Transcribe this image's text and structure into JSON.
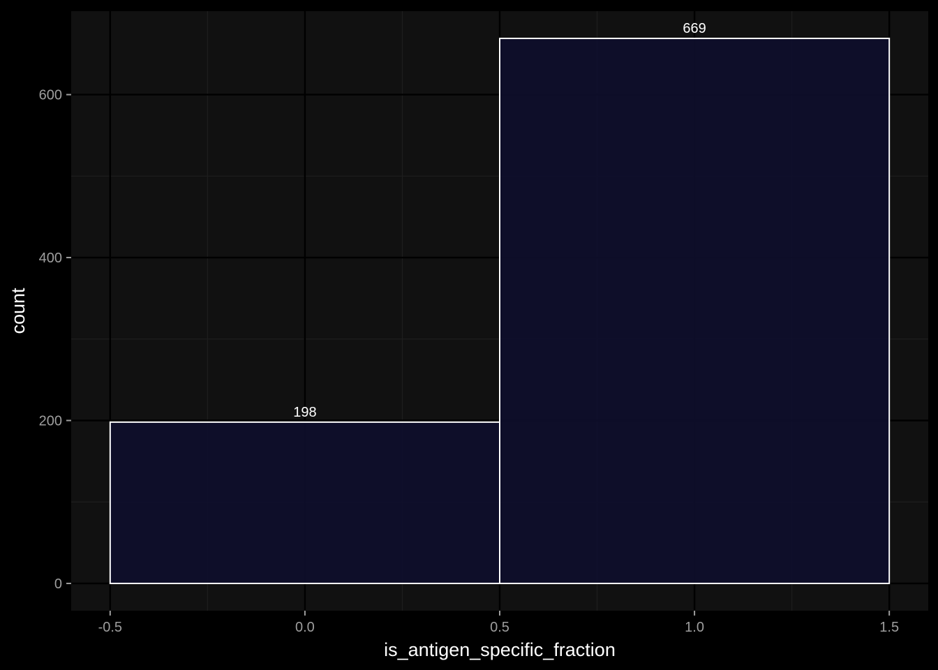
{
  "chart_data": {
    "type": "bar",
    "title": "",
    "xlabel": "is_antigen_specific_fraction",
    "ylabel": "count",
    "bins": [
      {
        "x_start": -0.5,
        "x_end": 0.5,
        "value": 198,
        "label": "198"
      },
      {
        "x_start": 0.5,
        "x_end": 1.5,
        "value": 669,
        "label": "669"
      }
    ],
    "xlim": [
      -0.6,
      1.6
    ],
    "ylim": [
      -33.45,
      702.45
    ],
    "x_ticks": [
      {
        "value": -0.5,
        "label": "-0.5"
      },
      {
        "value": 0.0,
        "label": "0.0"
      },
      {
        "value": 0.5,
        "label": "0.5"
      },
      {
        "value": 1.0,
        "label": "1.0"
      },
      {
        "value": 1.5,
        "label": "1.5"
      }
    ],
    "y_ticks": [
      {
        "value": 0,
        "label": "0"
      },
      {
        "value": 200,
        "label": "200"
      },
      {
        "value": 400,
        "label": "400"
      },
      {
        "value": 600,
        "label": "600"
      }
    ],
    "x_minor_ticks": [
      -0.25,
      0.25,
      0.75,
      1.25
    ],
    "y_minor_ticks": [
      100,
      300,
      500
    ],
    "grid": true,
    "legend": "none",
    "colors": {
      "background": "#000000",
      "panel": "#111111",
      "grid_major": "#000000",
      "grid_minor": "#1e1e1e",
      "bar_fill": "#0e0e2c",
      "bar_stroke": "#ffffff",
      "tick_label": "#9e9e9e",
      "axis_title": "#ffffff",
      "data_label": "#ffffff"
    }
  }
}
